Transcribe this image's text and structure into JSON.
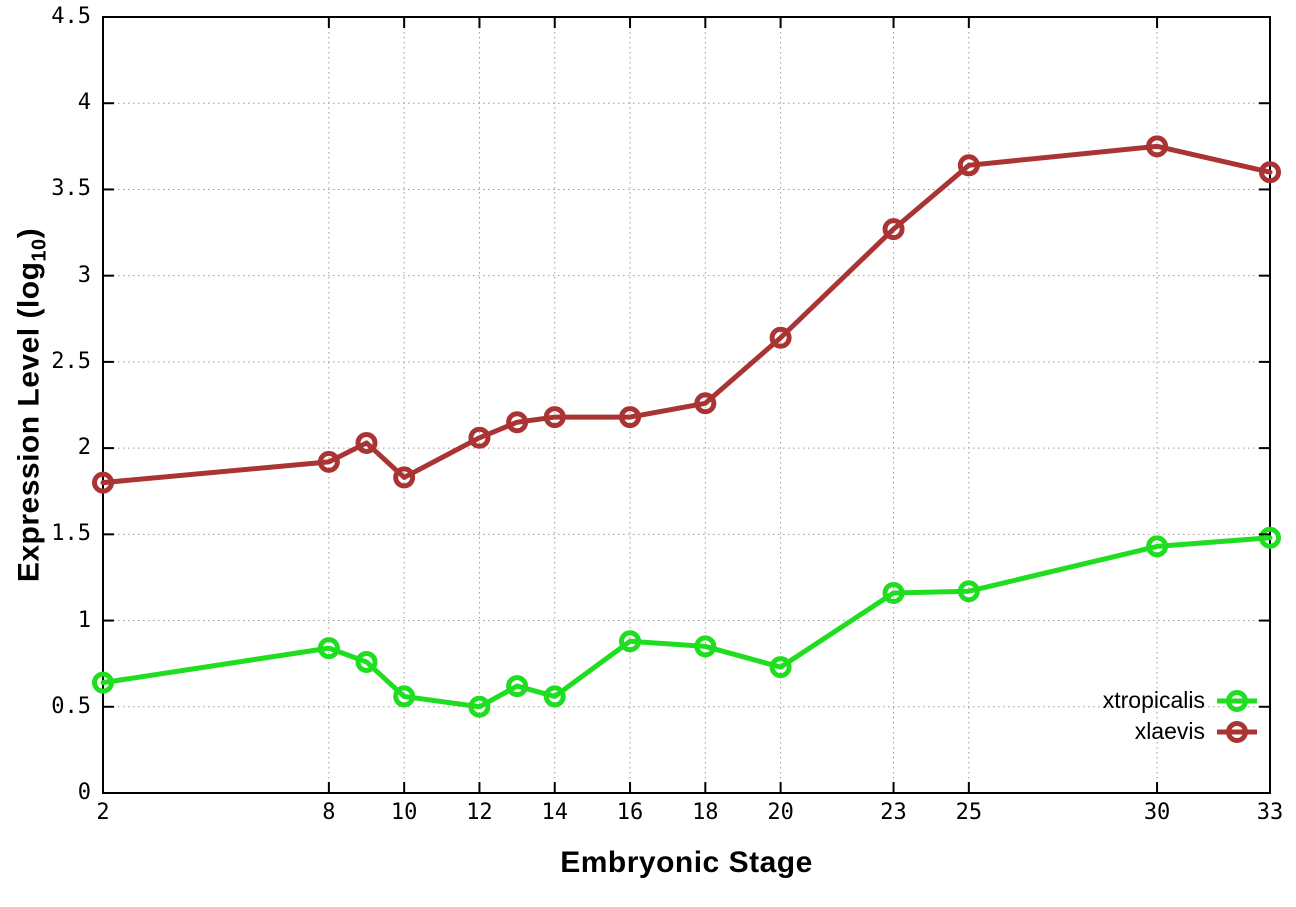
{
  "chart_data": {
    "type": "line",
    "title": "",
    "xlabel": "Embryonic Stage",
    "ylabel": "Expression Level (log10)",
    "ylabel_parts": {
      "main": "Expression Level (log",
      "sub": "10",
      "end": ")"
    },
    "xlim": [
      2,
      33
    ],
    "ylim": [
      0,
      4.5
    ],
    "grid": true,
    "legend_position": "bottom-right",
    "x_ticks": [
      2,
      8,
      10,
      12,
      14,
      16,
      18,
      20,
      23,
      25,
      30,
      33
    ],
    "x_tick_labels": [
      "2",
      "8",
      "10",
      "12",
      "14",
      "16",
      "18",
      "20",
      "23",
      "25",
      "30",
      "33"
    ],
    "y_ticks": [
      0,
      0.5,
      1,
      1.5,
      2,
      2.5,
      3,
      3.5,
      4,
      4.5
    ],
    "y_tick_labels": [
      "0",
      "0.5",
      "1",
      "1.5",
      "2",
      "2.5",
      "3",
      "3.5",
      "4",
      "4.5"
    ],
    "x": [
      2,
      8,
      9,
      10,
      12,
      13,
      14,
      16,
      18,
      20,
      23,
      25,
      30,
      33
    ],
    "series": [
      {
        "name": "xtropicalis",
        "color": "#1fdd1f",
        "values": [
          0.64,
          0.84,
          0.76,
          0.56,
          0.5,
          0.62,
          0.56,
          0.88,
          0.85,
          0.73,
          1.16,
          1.17,
          1.43,
          1.48
        ]
      },
      {
        "name": "xlaevis",
        "color": "#aa3333",
        "values": [
          1.8,
          1.92,
          2.03,
          1.83,
          2.06,
          2.15,
          2.18,
          2.18,
          2.26,
          2.64,
          3.27,
          3.64,
          3.75,
          3.6
        ]
      }
    ],
    "colors": {
      "axis": "#000000",
      "grid": "#9a9a9a",
      "background": "#ffffff"
    }
  },
  "legend": {
    "items": [
      {
        "label": "xtropicalis"
      },
      {
        "label": "xlaevis"
      }
    ]
  }
}
